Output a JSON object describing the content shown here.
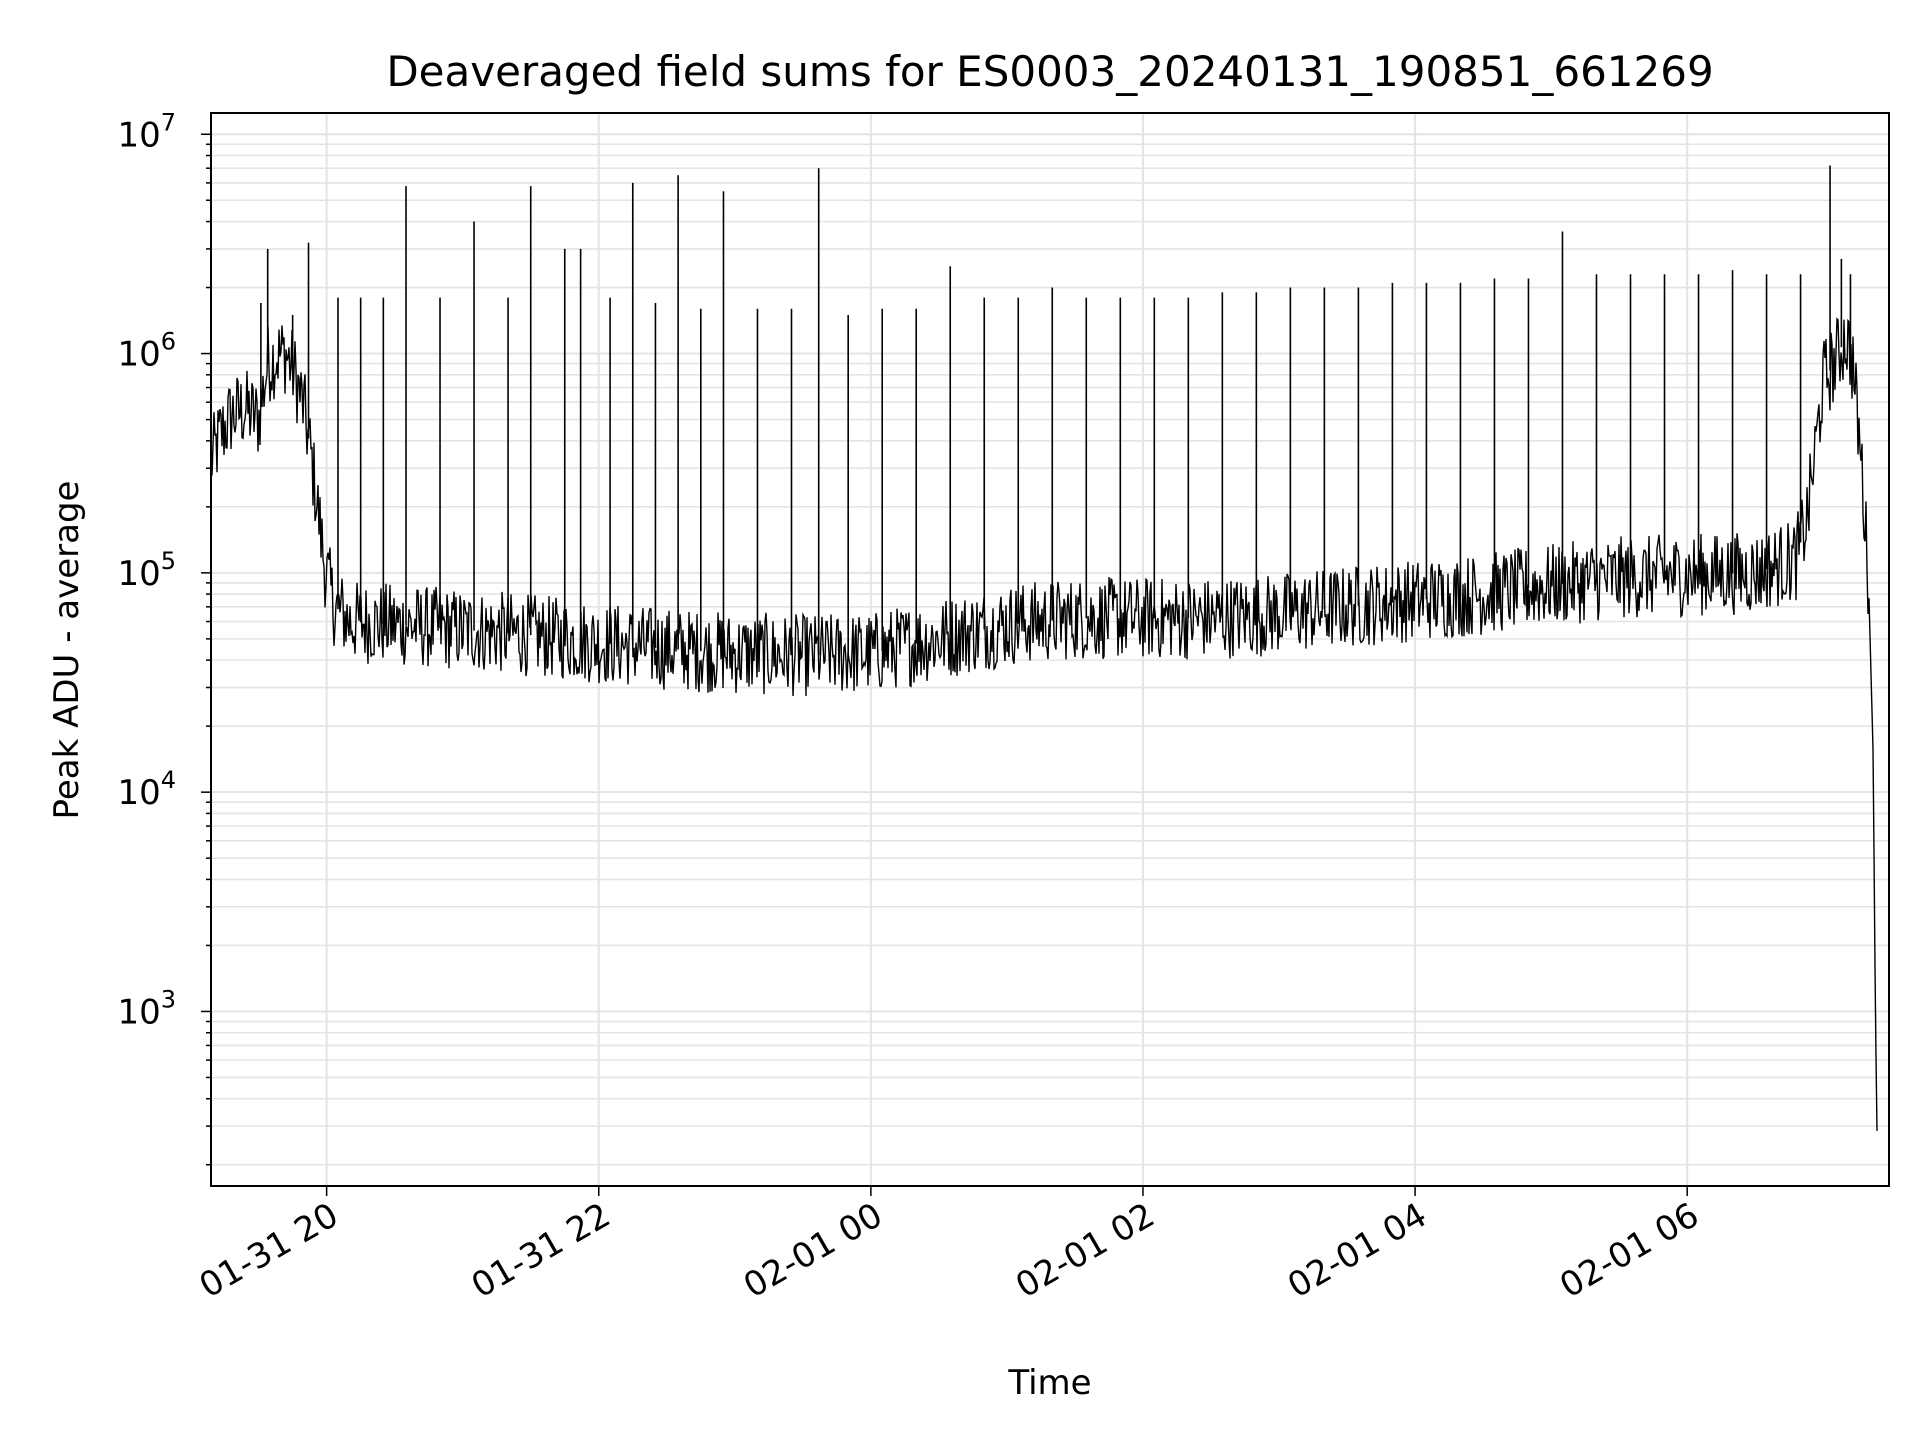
{
  "chart_data": {
    "type": "line",
    "title": "Deaveraged field sums for ES0003_20240131_190851_661269",
    "xlabel": "Time",
    "ylabel": "Peak ADU - average",
    "yscale": "log",
    "ylim": [
      160,
      12500000
    ],
    "xlim": [
      "2024-01-31 19:09",
      "2024-02-01 07:29"
    ],
    "grid": true,
    "line_color": "#000000",
    "x_ticks": [
      {
        "value": "2024-01-31 20:00",
        "label": "01-31 20"
      },
      {
        "value": "2024-01-31 22:00",
        "label": "01-31 22"
      },
      {
        "value": "2024-02-01 00:00",
        "label": "02-01 00"
      },
      {
        "value": "2024-02-01 02:00",
        "label": "02-01 02"
      },
      {
        "value": "2024-02-01 04:00",
        "label": "02-01 04"
      },
      {
        "value": "2024-02-01 06:00",
        "label": "02-01 06"
      }
    ],
    "y_ticks": [
      {
        "value": 1000,
        "base": "10",
        "exp": "3"
      },
      {
        "value": 10000,
        "base": "10",
        "exp": "4"
      },
      {
        "value": 100000,
        "base": "10",
        "exp": "5"
      },
      {
        "value": 1000000,
        "base": "10",
        "exp": "6"
      },
      {
        "value": 10000000,
        "base": "10",
        "exp": "7"
      }
    ],
    "series": [
      {
        "points": [
          [
            "2024-01-31 19:09",
            320000
          ],
          [
            "2024-01-31 19:13",
            420000
          ],
          [
            "2024-01-31 19:18",
            520000
          ],
          [
            "2024-01-31 19:24",
            560000
          ],
          [
            "2024-01-31 19:30",
            500000
          ],
          [
            "2024-01-31 19:34",
            900000
          ],
          [
            "2024-01-31 19:38",
            980000
          ],
          [
            "2024-01-31 19:42",
            1000000
          ],
          [
            "2024-01-31 19:46",
            800000
          ],
          [
            "2024-01-31 19:50",
            560000
          ],
          [
            "2024-01-31 19:53",
            350000
          ],
          [
            "2024-01-31 19:56",
            200000
          ],
          [
            "2024-01-31 19:59",
            110000
          ],
          [
            "2024-01-31 20:03",
            72000
          ],
          [
            "2024-01-31 20:10",
            60000
          ],
          [
            "2024-01-31 20:30",
            58000
          ],
          [
            "2024-01-31 21:00",
            55000
          ],
          [
            "2024-01-31 21:30",
            52000
          ],
          [
            "2024-01-31 22:00",
            48000
          ],
          [
            "2024-01-31 22:30",
            45000
          ],
          [
            "2024-01-31 23:00",
            43000
          ],
          [
            "2024-01-31 23:30",
            42000
          ],
          [
            "2024-02-01 00:00",
            43000
          ],
          [
            "2024-02-01 00:30",
            50000
          ],
          [
            "2024-02-01 01:00",
            58000
          ],
          [
            "2024-02-01 01:30",
            62000
          ],
          [
            "2024-02-01 02:00",
            62000
          ],
          [
            "2024-02-01 02:30",
            62000
          ],
          [
            "2024-02-01 03:00",
            65000
          ],
          [
            "2024-02-01 03:30",
            70000
          ],
          [
            "2024-02-01 04:00",
            75000
          ],
          [
            "2024-02-01 04:30",
            80000
          ],
          [
            "2024-02-01 05:00",
            88000
          ],
          [
            "2024-02-01 05:30",
            95000
          ],
          [
            "2024-02-01 06:00",
            98000
          ],
          [
            "2024-02-01 06:30",
            100000
          ],
          [
            "2024-02-01 06:48",
            115000
          ],
          [
            "2024-02-01 06:53",
            180000
          ],
          [
            "2024-02-01 06:57",
            400000
          ],
          [
            "2024-02-01 07:00",
            750000
          ],
          [
            "2024-02-01 07:05",
            900000
          ],
          [
            "2024-02-01 07:10",
            1200000
          ],
          [
            "2024-02-01 07:13",
            900000
          ],
          [
            "2024-02-01 07:17",
            300000
          ],
          [
            "2024-02-01 07:20",
            90000
          ],
          [
            "2024-02-01 07:22",
            15000
          ],
          [
            "2024-02-01 07:23",
            1000
          ],
          [
            "2024-02-01 07:24",
            170
          ]
        ],
        "spikes": [
          [
            "2024-01-31 19:31",
            1700000
          ],
          [
            "2024-01-31 19:34",
            3000000
          ],
          [
            "2024-01-31 19:45",
            1500000
          ],
          [
            "2024-01-31 19:52",
            3200000
          ],
          [
            "2024-01-31 20:05",
            1800000
          ],
          [
            "2024-01-31 20:15",
            1800000
          ],
          [
            "2024-01-31 20:25",
            1800000
          ],
          [
            "2024-01-31 20:35",
            5800000
          ],
          [
            "2024-01-31 20:50",
            1800000
          ],
          [
            "2024-01-31 21:05",
            4000000
          ],
          [
            "2024-01-31 21:20",
            1800000
          ],
          [
            "2024-01-31 21:30",
            5800000
          ],
          [
            "2024-01-31 21:45",
            3000000
          ],
          [
            "2024-01-31 21:52",
            3000000
          ],
          [
            "2024-01-31 22:05",
            1800000
          ],
          [
            "2024-01-31 22:15",
            6000000
          ],
          [
            "2024-01-31 22:25",
            1700000
          ],
          [
            "2024-01-31 22:35",
            6500000
          ],
          [
            "2024-01-31 22:45",
            1600000
          ],
          [
            "2024-01-31 22:55",
            5500000
          ],
          [
            "2024-01-31 23:10",
            1600000
          ],
          [
            "2024-01-31 23:25",
            1600000
          ],
          [
            "2024-01-31 23:37",
            7000000
          ],
          [
            "2024-01-31 23:50",
            1500000
          ],
          [
            "2024-02-01 00:05",
            1600000
          ],
          [
            "2024-02-01 00:20",
            1600000
          ],
          [
            "2024-02-01 00:35",
            2500000
          ],
          [
            "2024-02-01 00:50",
            1800000
          ],
          [
            "2024-02-01 01:05",
            1800000
          ],
          [
            "2024-02-01 01:20",
            2000000
          ],
          [
            "2024-02-01 01:35",
            1800000
          ],
          [
            "2024-02-01 01:50",
            1800000
          ],
          [
            "2024-02-01 02:05",
            1800000
          ],
          [
            "2024-02-01 02:20",
            1800000
          ],
          [
            "2024-02-01 02:35",
            1900000
          ],
          [
            "2024-02-01 02:50",
            1900000
          ],
          [
            "2024-02-01 03:05",
            2000000
          ],
          [
            "2024-02-01 03:20",
            2000000
          ],
          [
            "2024-02-01 03:35",
            2000000
          ],
          [
            "2024-02-01 03:50",
            2100000
          ],
          [
            "2024-02-01 04:05",
            2100000
          ],
          [
            "2024-02-01 04:20",
            2100000
          ],
          [
            "2024-02-01 04:35",
            2200000
          ],
          [
            "2024-02-01 04:50",
            2200000
          ],
          [
            "2024-02-01 05:05",
            3600000
          ],
          [
            "2024-02-01 05:20",
            2300000
          ],
          [
            "2024-02-01 05:35",
            2300000
          ],
          [
            "2024-02-01 05:50",
            2300000
          ],
          [
            "2024-02-01 06:05",
            2300000
          ],
          [
            "2024-02-01 06:20",
            2400000
          ],
          [
            "2024-02-01 06:35",
            2300000
          ],
          [
            "2024-02-01 06:50",
            2300000
          ],
          [
            "2024-02-01 07:03",
            7200000
          ],
          [
            "2024-02-01 07:08",
            2700000
          ],
          [
            "2024-02-01 07:12",
            2300000
          ]
        ]
      }
    ]
  }
}
